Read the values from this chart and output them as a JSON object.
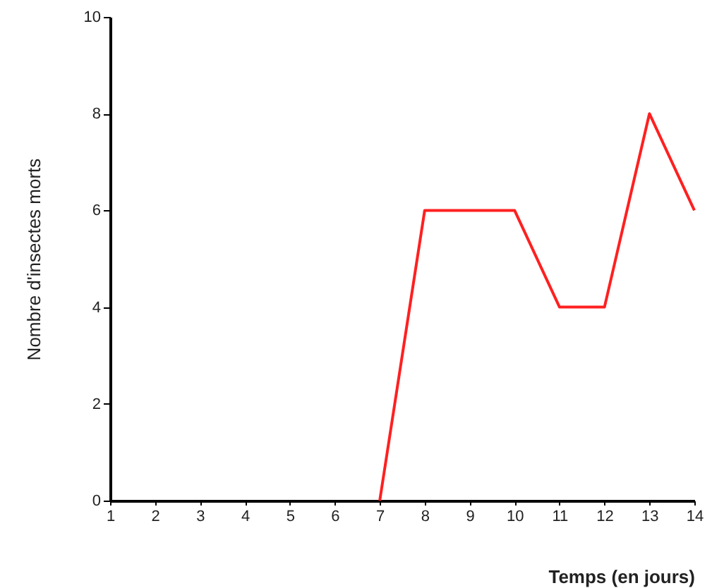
{
  "chart_data": {
    "type": "line",
    "xlabel": "Temps (en jours)",
    "ylabel": "Nombre d'insectes morts",
    "series": [
      {
        "color": "#ff2020",
        "x": [
          7,
          8,
          9,
          10,
          11,
          12,
          13,
          14
        ],
        "values": [
          0,
          6,
          6,
          6,
          4,
          4,
          8,
          6
        ]
      }
    ],
    "xlim": [
      1,
      14
    ],
    "xticks": [
      1,
      2,
      3,
      4,
      5,
      6,
      7,
      8,
      9,
      10,
      11,
      12,
      13,
      14
    ],
    "ylim": [
      0,
      10
    ],
    "yticks": [
      0,
      2,
      4,
      6,
      8,
      10
    ],
    "grid": false,
    "marker": "none",
    "line_style": "solid"
  }
}
